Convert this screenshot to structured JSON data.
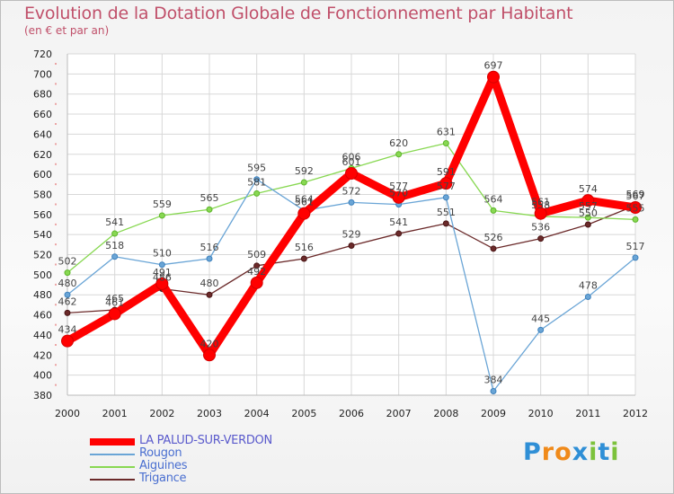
{
  "chart_data": {
    "type": "line",
    "title": "Evolution de la Dotation Globale de Fonctionnement par Habitant",
    "subtitle": "(en € et par an)",
    "x": [
      "2000",
      "2001",
      "2002",
      "2003",
      "2004",
      "2005",
      "2006",
      "2007",
      "2008",
      "2009",
      "2010",
      "2011",
      "2012"
    ],
    "ylim": [
      380,
      720
    ],
    "yticks": [
      380,
      400,
      420,
      440,
      460,
      480,
      500,
      520,
      540,
      560,
      580,
      600,
      620,
      640,
      660,
      680,
      700,
      720
    ],
    "grid": true,
    "legend_position": "bottom-left",
    "series": [
      {
        "name": "LA PALUD-SUR-VERDON",
        "color": "#ff0000",
        "values": [
          434,
          461,
          491,
          420,
          492,
          561,
          601,
          577,
          591,
          697,
          561,
          574,
          567
        ]
      },
      {
        "name": "Rougon",
        "color": "#6aa5d6",
        "values": [
          480,
          518,
          510,
          516,
          595,
          564,
          572,
          570,
          577,
          384,
          445,
          478,
          517
        ]
      },
      {
        "name": "Aiguines",
        "color": "#88d852",
        "values": [
          502,
          541,
          559,
          565,
          581,
          592,
          606,
          620,
          631,
          564,
          558,
          557,
          555
        ]
      },
      {
        "name": "Trigance",
        "color": "#6b2a2a",
        "values": [
          462,
          465,
          486,
          480,
          509,
          516,
          529,
          541,
          551,
          526,
          536,
          550,
          569
        ]
      }
    ]
  },
  "logo": {
    "text": "Proxiti",
    "colors": [
      "#2f8fd6",
      "#f08a1a",
      "#f08a1a",
      "#2f8fd6",
      "#7cc23b",
      "#2f8fd6",
      "#7cc23b"
    ]
  }
}
